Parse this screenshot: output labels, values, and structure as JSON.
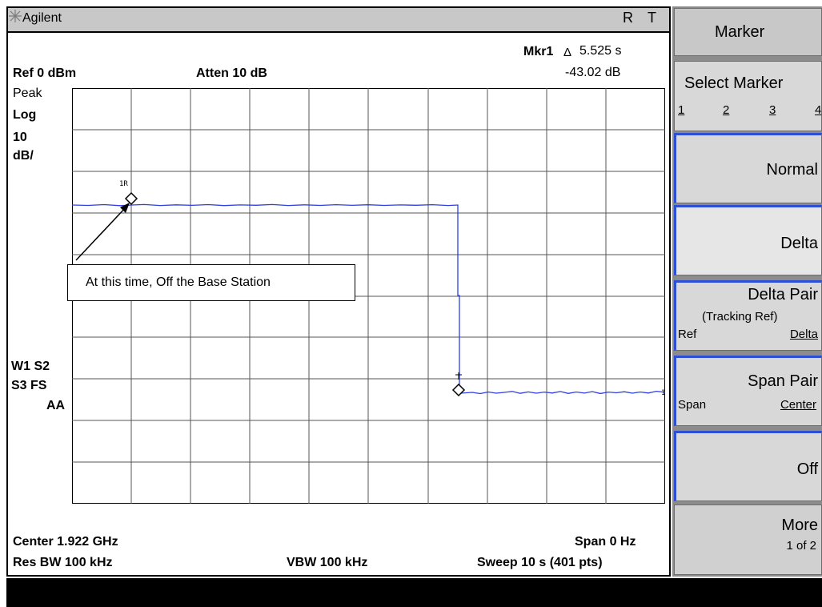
{
  "header": {
    "brand": "Agilent",
    "status_r": "R",
    "status_t": "T",
    "marker_label": "Mkr1",
    "marker_delta_symbol": "Δ",
    "marker_time": "5.525 s",
    "marker_level": "-43.02 dB",
    "ref_level": "Ref 0 dBm",
    "atten": "Atten 10 dB"
  },
  "left_labels": {
    "detector": "Peak",
    "scale_type": "Log",
    "scale_value": "10",
    "scale_unit": "dB/",
    "w1s2": "W1 S2",
    "s3fs": "S3 FS",
    "aa": "AA"
  },
  "footer": {
    "center": "Center 1.922 GHz",
    "span": "Span 0 Hz",
    "res_bw": "Res BW 100 kHz",
    "vbw": "VBW 100 kHz",
    "sweep": "Sweep 10 s (401 pts)"
  },
  "annotation": "At this time, Off the Base Station",
  "markers": {
    "ref_label": "1R",
    "delta_label": "1"
  },
  "softkeys": {
    "title": "Marker",
    "select_marker": "Select Marker",
    "select_options": [
      "1",
      "2",
      "3",
      "4"
    ],
    "normal": "Normal",
    "delta": "Delta",
    "delta_pair": "Delta Pair",
    "delta_pair_sub": "(Tracking Ref)",
    "delta_pair_left": "Ref",
    "delta_pair_right": "Delta",
    "span_pair": "Span Pair",
    "span_pair_left": "Span",
    "span_pair_right": "Center",
    "off": "Off",
    "more": "More",
    "more_sub": "1 of 2"
  },
  "colors": {
    "trace": "#2f3fe0",
    "softkey_accent": "#2d4fd6",
    "title_bar": "#c8c8c8"
  }
}
